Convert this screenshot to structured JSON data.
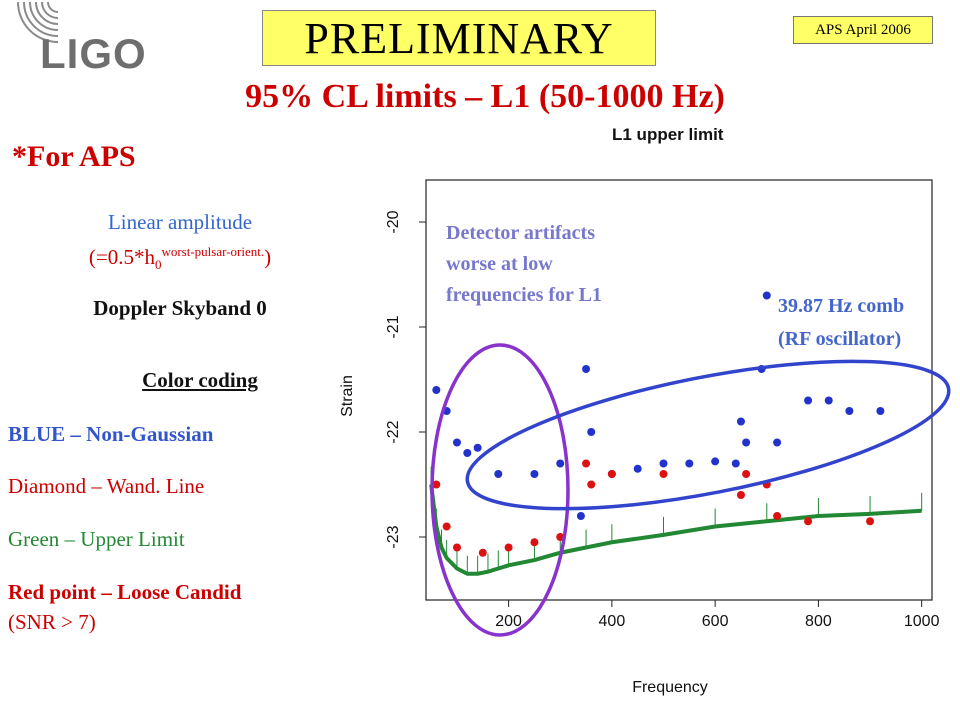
{
  "header": {
    "logo_text": "LIGO",
    "preliminary": "PRELIMINARY",
    "badge": "APS April 2006",
    "title": "95% CL limits – L1 (50-1000 Hz)"
  },
  "sidebar": {
    "for_aps": "*For APS",
    "linear_amplitude": "Linear amplitude",
    "formula_prefix": "(=0.5*h",
    "formula_sub": "0",
    "formula_sup": "worst-pulsar-orient.",
    "formula_suffix": ")",
    "doppler": "Doppler Skyband 0",
    "color_coding": "Color coding",
    "legend": {
      "blue": "BLUE – Non-Gaussian",
      "diamond": "Diamond – Wand. Line",
      "green": "Green – Upper Limit",
      "red": "Red point – Loose Candid",
      "snr": "(SNR > 7)"
    }
  },
  "annotations": {
    "artifacts_line1": "Detector artifacts",
    "artifacts_line2": "worse at low",
    "artifacts_line3": "frequencies for L1",
    "comb_line1": "39.87 Hz comb",
    "comb_line2": "(RF oscillator)"
  },
  "chart_data": {
    "type": "scatter",
    "title": "L1 upper limit",
    "xlabel": "Frequency",
    "ylabel": "Strain",
    "xlim": [
      40,
      1020
    ],
    "ylim": [
      -23.6,
      -19.6
    ],
    "x_ticks": [
      200,
      400,
      600,
      800,
      1000
    ],
    "y_ticks": [
      -20,
      -21,
      -22,
      -23
    ],
    "series": [
      {
        "name": "Green – Upper Limit",
        "color": "#228833",
        "x": [
          50,
          60,
          70,
          80,
          100,
          120,
          140,
          160,
          180,
          200,
          250,
          300,
          350,
          400,
          500,
          600,
          700,
          800,
          900,
          1000
        ],
        "values": [
          -22.5,
          -22.9,
          -23.1,
          -23.2,
          -23.3,
          -23.35,
          -23.35,
          -23.33,
          -23.3,
          -23.27,
          -23.22,
          -23.15,
          -23.1,
          -23.05,
          -22.98,
          -22.9,
          -22.85,
          -22.8,
          -22.78,
          -22.75
        ]
      },
      {
        "name": "BLUE – Non-Gaussian",
        "color": "#2233cc",
        "x": [
          60,
          80,
          100,
          120,
          140,
          180,
          250,
          300,
          340,
          350,
          360,
          400,
          450,
          500,
          550,
          600,
          640,
          650,
          660,
          690,
          700,
          720,
          780,
          820,
          860,
          920
        ],
        "values": [
          -21.6,
          -21.8,
          -22.1,
          -22.2,
          -22.15,
          -22.4,
          -22.4,
          -22.3,
          -22.8,
          -21.4,
          -22.0,
          -22.4,
          -22.35,
          -22.3,
          -22.3,
          -22.28,
          -22.3,
          -21.9,
          -22.1,
          -21.4,
          -20.7,
          -22.1,
          -21.7,
          -21.7,
          -21.8,
          -21.8
        ]
      },
      {
        "name": "Red point – Loose Candid",
        "color": "#dd1111",
        "x": [
          60,
          80,
          100,
          150,
          200,
          250,
          300,
          350,
          360,
          400,
          500,
          650,
          660,
          700,
          720,
          780,
          900
        ],
        "values": [
          -22.5,
          -22.9,
          -23.1,
          -23.15,
          -23.1,
          -23.05,
          -23.0,
          -22.3,
          -22.5,
          -22.4,
          -22.4,
          -22.6,
          -22.4,
          -22.5,
          -22.8,
          -22.85,
          -22.85
        ]
      }
    ]
  }
}
